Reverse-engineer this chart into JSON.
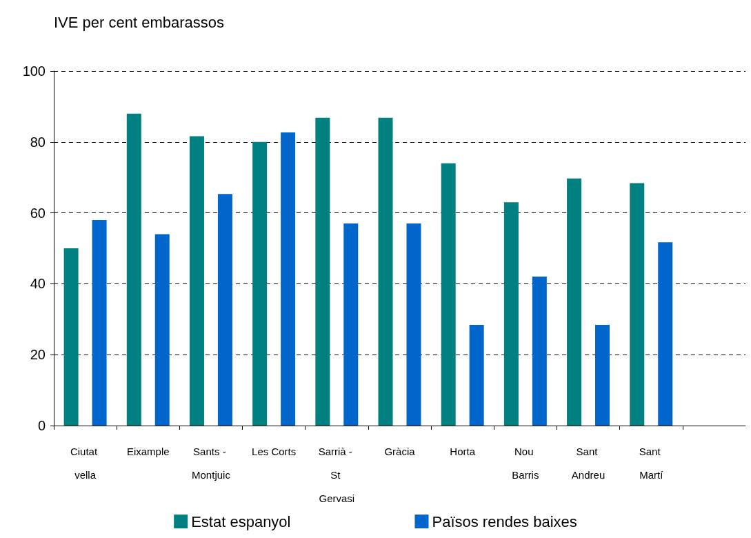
{
  "chart_data": {
    "type": "bar",
    "title": "IVE per cent embarassos",
    "categories": [
      "Ciutat vella",
      "Eixample",
      "Sants - Montjuic",
      "Les Corts",
      "Sarrià - St Gervasi",
      "Gràcia",
      "Horta",
      "Nou Barris",
      "Sant Andreu",
      "Sant Martí",
      null
    ],
    "series": [
      {
        "name": "Estat espanyol",
        "color": "#008080",
        "values": [
          50,
          88,
          81.6,
          80,
          86.8,
          86.8,
          74,
          63,
          69.7,
          68.4,
          null
        ]
      },
      {
        "name": "Països rendes baixes",
        "color": "#0066cc",
        "values": [
          58,
          54,
          65.3,
          82.7,
          57,
          57,
          28.4,
          42,
          28.4,
          51.7,
          null
        ]
      }
    ],
    "ylim": [
      0,
      100
    ],
    "yticks": [
      0,
      20,
      40,
      60,
      80,
      100
    ],
    "grid": "y",
    "legend": "bottom"
  }
}
